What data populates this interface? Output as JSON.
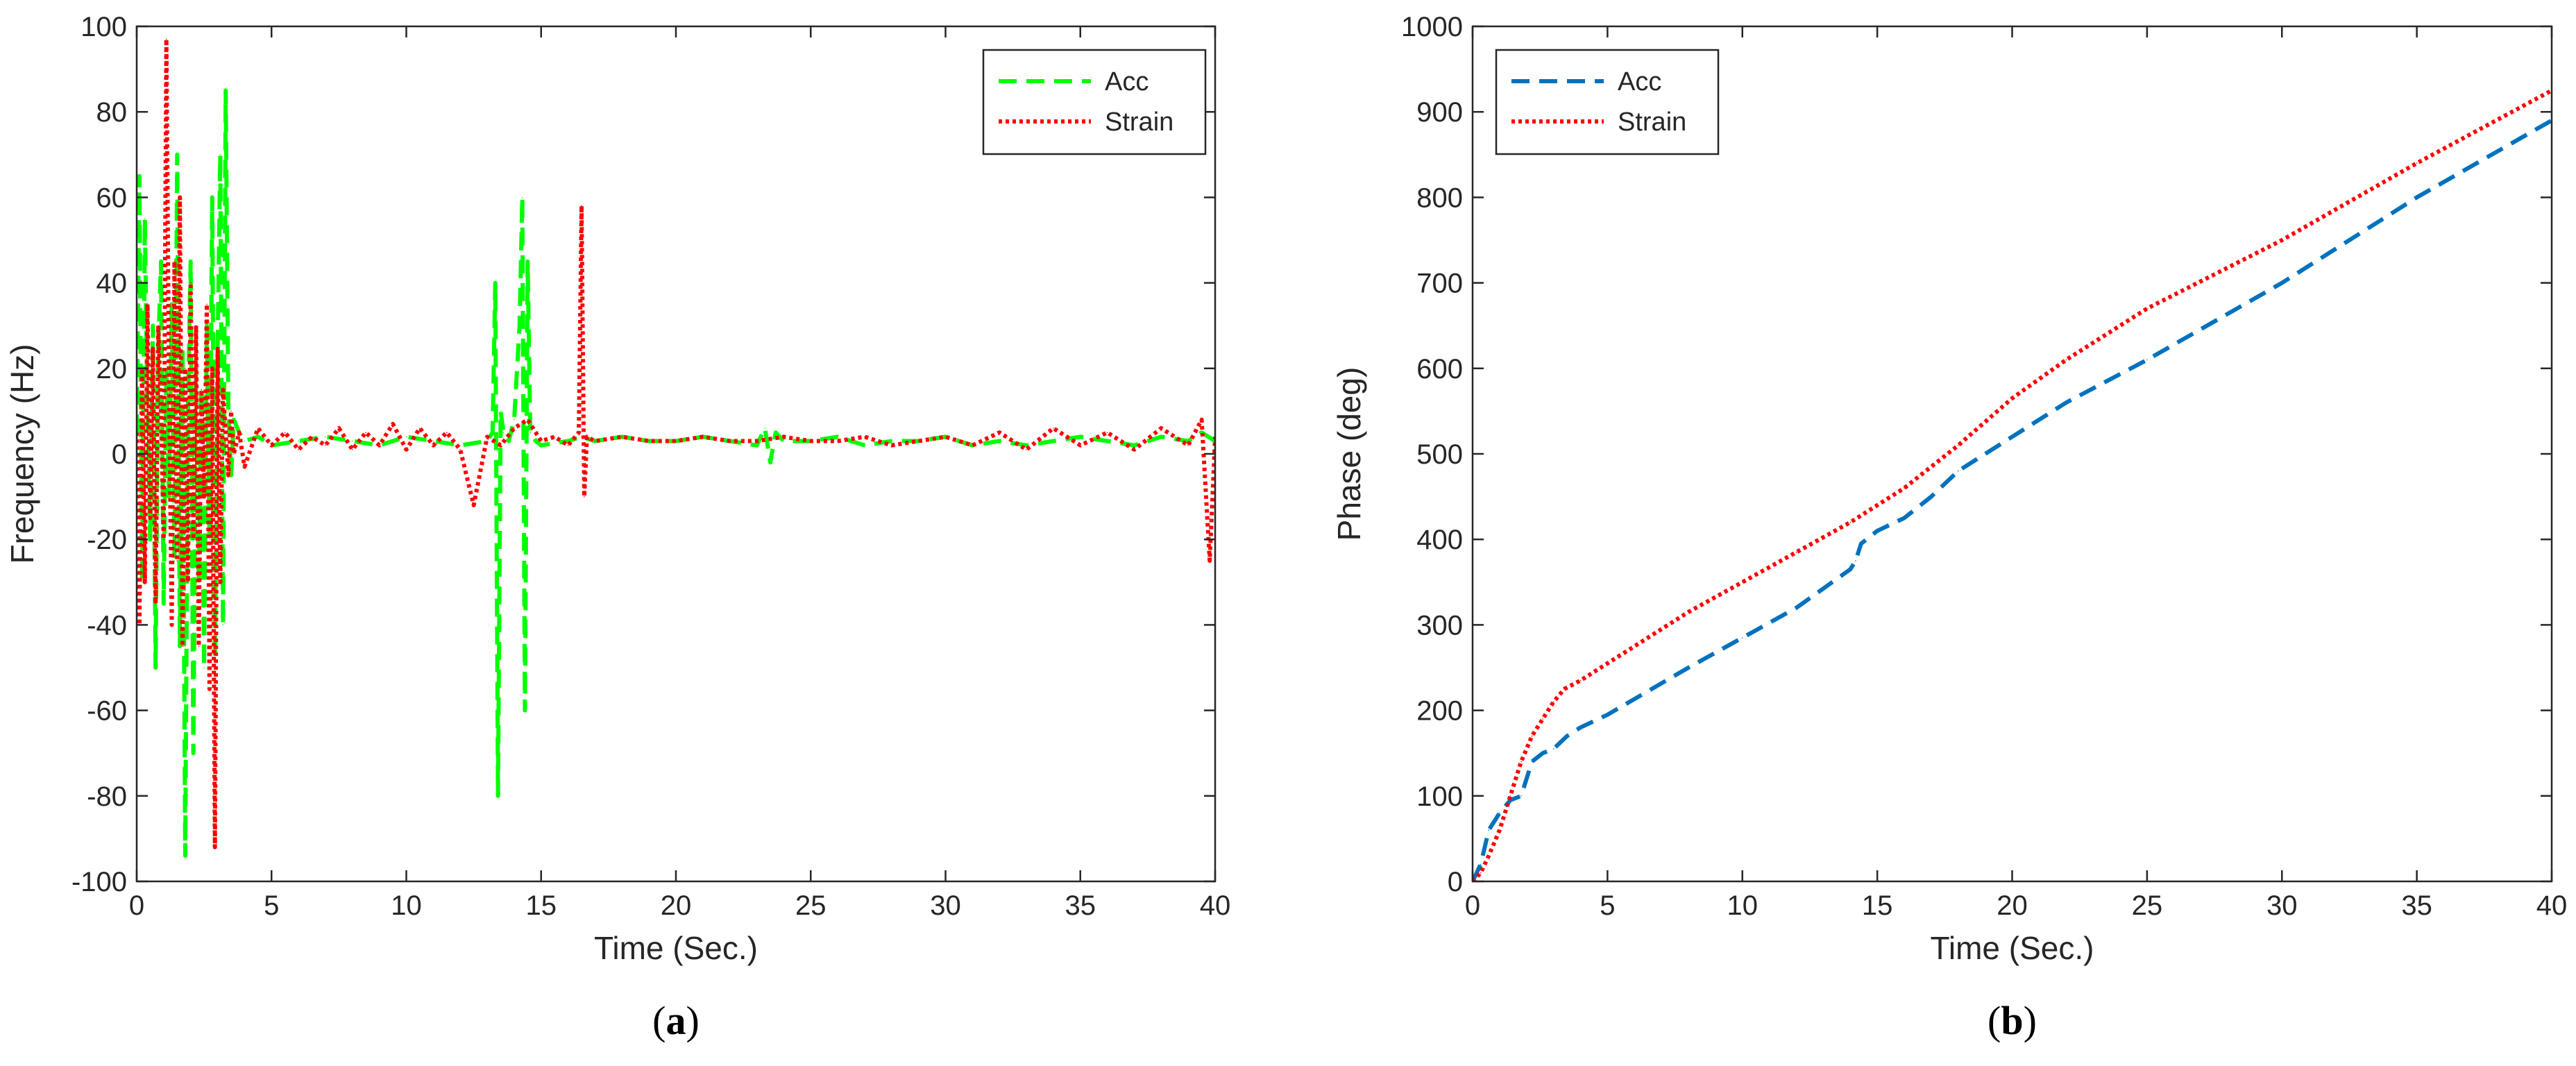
{
  "chart_data": [
    {
      "id": "a",
      "type": "line",
      "caption_open": "(",
      "caption_letter": "a",
      "caption_close": ")",
      "xlabel": "Time (Sec.)",
      "ylabel": "Frequency (Hz)",
      "xlim": [
        0,
        40
      ],
      "ylim": [
        -100,
        100
      ],
      "xticks": [
        0,
        5,
        10,
        15,
        20,
        25,
        30,
        35,
        40
      ],
      "yticks": [
        -100,
        -80,
        -60,
        -40,
        -20,
        0,
        20,
        40,
        60,
        80,
        100
      ],
      "grid": false,
      "legend_position": "top-right",
      "series": [
        {
          "name": "Acc",
          "color": "#00ff00",
          "dash": "dashed",
          "x": [
            0,
            0.1,
            0.2,
            0.3,
            0.4,
            0.5,
            0.6,
            0.7,
            0.8,
            0.9,
            1.0,
            1.1,
            1.2,
            1.3,
            1.4,
            1.5,
            1.6,
            1.7,
            1.8,
            1.9,
            2.0,
            2.1,
            2.2,
            2.3,
            2.4,
            2.5,
            2.6,
            2.7,
            2.8,
            2.9,
            3.0,
            3.1,
            3.2,
            3.3,
            3.4,
            3.5,
            3.6,
            3.8,
            4.0,
            4.5,
            5,
            6,
            7,
            8,
            9,
            10,
            11,
            12,
            13,
            13.2,
            13.3,
            13.4,
            13.5,
            13.6,
            13.8,
            14.0,
            14.2,
            14.3,
            14.4,
            14.5,
            14.6,
            14.8,
            15,
            16,
            16.5,
            17,
            18,
            19,
            20,
            21,
            22,
            23,
            23.3,
            23.5,
            23.7,
            24,
            25,
            26,
            27,
            28,
            29,
            30,
            31,
            32,
            33,
            34,
            35,
            36,
            37,
            38,
            39,
            39.5,
            40
          ],
          "y": [
            5,
            65,
            -30,
            55,
            10,
            -20,
            30,
            -50,
            25,
            45,
            -35,
            20,
            -10,
            35,
            -25,
            70,
            -45,
            25,
            -94,
            10,
            45,
            -70,
            20,
            -30,
            15,
            -50,
            30,
            -20,
            60,
            -48,
            25,
            70,
            -40,
            85,
            10,
            -5,
            8,
            5,
            3,
            4,
            2,
            3,
            4,
            3,
            2,
            4,
            3,
            2,
            3,
            5,
            40,
            -80,
            10,
            5,
            3,
            8,
            30,
            60,
            -60,
            45,
            5,
            3,
            2,
            3,
            4,
            3,
            4,
            3,
            3,
            4,
            3,
            2,
            6,
            -2,
            5,
            3,
            3,
            4,
            2,
            3,
            3,
            4,
            2,
            3,
            2,
            3,
            4,
            3,
            2,
            4,
            3,
            5,
            3
          ]
        },
        {
          "name": "Strain",
          "color": "#ff0000",
          "dash": "dotted",
          "x": [
            0,
            0.1,
            0.2,
            0.3,
            0.4,
            0.5,
            0.6,
            0.7,
            0.8,
            0.9,
            1.0,
            1.1,
            1.2,
            1.3,
            1.4,
            1.5,
            1.6,
            1.7,
            1.8,
            1.9,
            2.0,
            2.1,
            2.2,
            2.3,
            2.4,
            2.5,
            2.6,
            2.7,
            2.8,
            2.9,
            3.0,
            3.1,
            3.2,
            3.3,
            3.4,
            3.5,
            3.6,
            3.8,
            4.0,
            4.5,
            5,
            5.5,
            6,
            6.5,
            7,
            7.5,
            8,
            8.5,
            9,
            9.5,
            10,
            10.5,
            11,
            11.5,
            12,
            12.5,
            13,
            13.5,
            14,
            14.5,
            15,
            15.5,
            16,
            16.4,
            16.5,
            16.6,
            16.7,
            17,
            18,
            19,
            20,
            21,
            22,
            23,
            24,
            25,
            26,
            27,
            28,
            29,
            30,
            31,
            32,
            33,
            34,
            35,
            36,
            37,
            38,
            39,
            39.5,
            39.8,
            40
          ],
          "y": [
            5,
            -40,
            20,
            -30,
            35,
            -15,
            25,
            -35,
            30,
            10,
            -20,
            97,
            15,
            -40,
            45,
            -25,
            60,
            -45,
            20,
            -30,
            40,
            -20,
            30,
            -45,
            15,
            -10,
            35,
            -55,
            20,
            -92,
            25,
            -30,
            15,
            5,
            -5,
            10,
            0,
            5,
            -3,
            6,
            2,
            5,
            1,
            4,
            2,
            6,
            1,
            5,
            2,
            7,
            1,
            6,
            2,
            5,
            1,
            -12,
            4,
            2,
            6,
            8,
            3,
            4,
            2,
            5,
            58,
            -10,
            4,
            3,
            4,
            3,
            3,
            4,
            3,
            3,
            4,
            3,
            3,
            4,
            2,
            3,
            4,
            2,
            5,
            1,
            6,
            2,
            5,
            1,
            6,
            2,
            8,
            -25,
            4
          ]
        }
      ]
    },
    {
      "id": "b",
      "type": "line",
      "caption_open": "(",
      "caption_letter": "b",
      "caption_close": ")",
      "xlabel": "Time (Sec.)",
      "ylabel": "Phase (deg)",
      "xlim": [
        0,
        40
      ],
      "ylim": [
        0,
        1000
      ],
      "xticks": [
        0,
        5,
        10,
        15,
        20,
        25,
        30,
        35,
        40
      ],
      "yticks": [
        0,
        100,
        200,
        300,
        400,
        500,
        600,
        700,
        800,
        900,
        1000
      ],
      "grid": false,
      "legend_position": "top-left",
      "series": [
        {
          "name": "Acc",
          "color": "#0072bd",
          "dash": "dashed",
          "x": [
            0,
            0.3,
            0.6,
            1.0,
            1.4,
            1.8,
            2.2,
            2.6,
            3.0,
            3.5,
            4,
            5,
            8,
            10,
            12,
            14.0,
            14.2,
            14.4,
            15,
            16,
            17,
            18,
            20,
            22,
            25,
            30,
            35,
            40
          ],
          "y": [
            0,
            20,
            60,
            80,
            95,
            100,
            140,
            150,
            155,
            170,
            180,
            195,
            250,
            285,
            320,
            365,
            375,
            395,
            410,
            425,
            450,
            480,
            520,
            560,
            610,
            700,
            800,
            890
          ]
        },
        {
          "name": "Strain",
          "color": "#ff0000",
          "dash": "dotted",
          "x": [
            0,
            0.3,
            0.6,
            1.0,
            1.4,
            1.8,
            2.2,
            2.6,
            3.0,
            3.4,
            4,
            5,
            8,
            10,
            12,
            14,
            16,
            18,
            20,
            22,
            25,
            30,
            35,
            40
          ],
          "y": [
            0,
            10,
            30,
            60,
            100,
            140,
            170,
            190,
            210,
            225,
            235,
            255,
            315,
            350,
            385,
            420,
            460,
            510,
            565,
            610,
            670,
            750,
            840,
            925
          ]
        }
      ]
    }
  ]
}
